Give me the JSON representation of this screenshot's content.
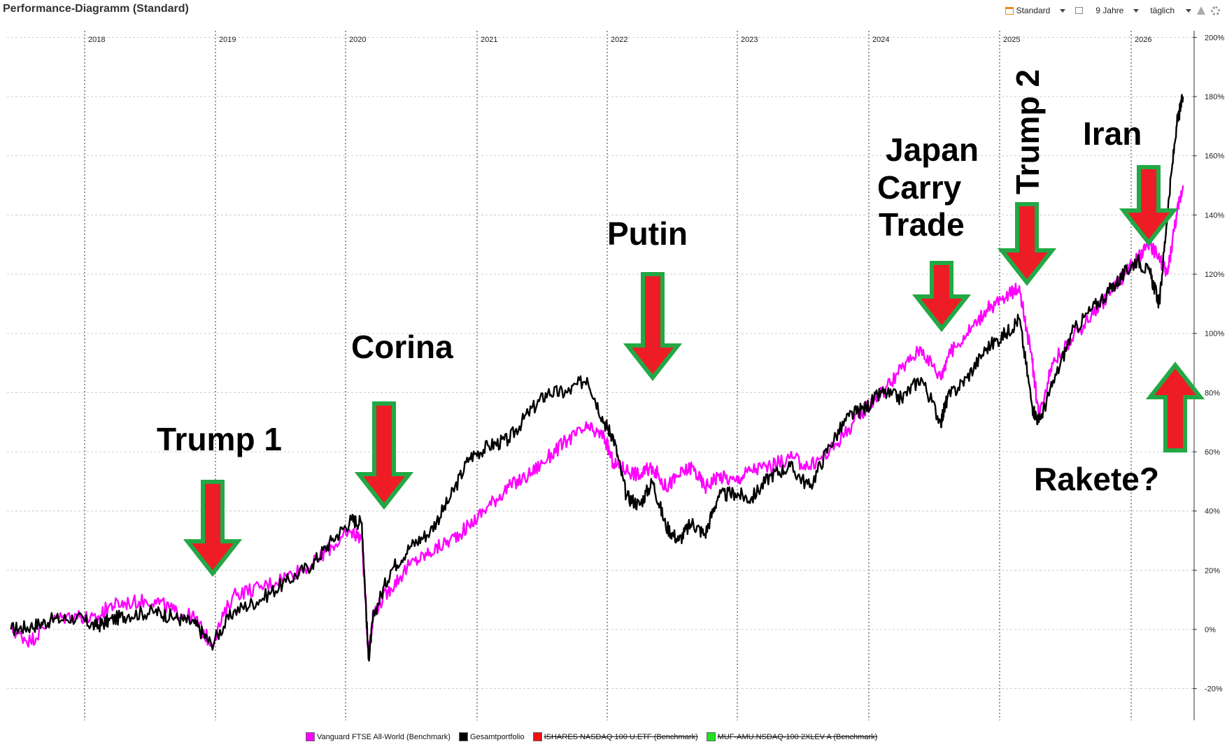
{
  "title": "Performance-Diagramm (Standard)",
  "toolbar": {
    "view_label": "Standard",
    "range_label": "9 Jahre",
    "interval_label": "täglich"
  },
  "annotations": {
    "trump1": "Trump 1",
    "corina": "Corina",
    "putin": "Putin",
    "japan1": "Japan",
    "japan2": "Carry",
    "japan3": "Trade",
    "trump2": "Trump 2",
    "iran": "Iran",
    "rakete": "Rakete?"
  },
  "legend": [
    {
      "label": "Vanguard FTSE All-World  (Benchmark)",
      "color": "#ff00ff",
      "strike": false
    },
    {
      "label": "Gesamtportfolio",
      "color": "#000000",
      "strike": false
    },
    {
      "label": "ISHARES NASDAQ  100 U.ETF (Benchmark)",
      "color": "#ee1111",
      "strike": true
    },
    {
      "label": "MUF-AMU.NSDAQ-100 2XLEV A (Benchmark)",
      "color": "#22dd22",
      "strike": true
    }
  ],
  "chart_data": {
    "type": "line",
    "x_label": "",
    "y_label": "",
    "x_ticks": [
      "2018",
      "2019",
      "2020",
      "2021",
      "2022",
      "2023",
      "2024",
      "2025",
      "2026"
    ],
    "y_ticks": [
      "200%",
      "180%",
      "160%",
      "140%",
      "120%",
      "100%",
      "80%",
      "60%",
      "40%",
      "20%",
      "0%",
      "-20%"
    ],
    "ylim": [
      -20,
      200
    ],
    "xlim": [
      2017.4,
      2026.5
    ],
    "grid": true,
    "series": [
      {
        "name": "Gesamtportfolio",
        "color": "#000000",
        "x": [
          2017.45,
          2017.6,
          2017.75,
          2017.95,
          2018.1,
          2018.2,
          2018.35,
          2018.55,
          2018.7,
          2018.85,
          2018.98,
          2019.15,
          2019.35,
          2019.55,
          2019.75,
          2019.9,
          2020.05,
          2020.13,
          2020.18,
          2020.22,
          2020.35,
          2020.5,
          2020.65,
          2020.8,
          2020.95,
          2021.1,
          2021.25,
          2021.4,
          2021.55,
          2021.7,
          2021.85,
          2021.98,
          2022.05,
          2022.15,
          2022.25,
          2022.35,
          2022.45,
          2022.55,
          2022.65,
          2022.75,
          2022.85,
          2022.98,
          2023.1,
          2023.25,
          2023.4,
          2023.55,
          2023.7,
          2023.85,
          2023.98,
          2024.1,
          2024.25,
          2024.4,
          2024.55,
          2024.6,
          2024.75,
          2024.9,
          2025.05,
          2025.15,
          2025.25,
          2025.3,
          2025.4,
          2025.55,
          2025.7,
          2025.85,
          2025.95,
          2026.05,
          2026.15,
          2026.22,
          2026.28,
          2026.35,
          2026.4
        ],
        "values": [
          0,
          1,
          3,
          4,
          1,
          3,
          5,
          6,
          4,
          2,
          -5,
          6,
          10,
          16,
          22,
          30,
          37,
          36,
          -10,
          5,
          20,
          28,
          33,
          44,
          58,
          62,
          64,
          73,
          80,
          80,
          85,
          70,
          65,
          45,
          42,
          50,
          35,
          30,
          36,
          32,
          45,
          46,
          44,
          52,
          55,
          48,
          62,
          72,
          75,
          80,
          78,
          85,
          70,
          78,
          85,
          95,
          100,
          105,
          75,
          70,
          82,
          100,
          108,
          115,
          120,
          125,
          120,
          110,
          140,
          170,
          180
        ]
      },
      {
        "name": "Vanguard FTSE All-World  (Benchmark)",
        "color": "#ff00ff",
        "x": [
          2017.45,
          2017.6,
          2017.75,
          2017.95,
          2018.1,
          2018.2,
          2018.35,
          2018.55,
          2018.7,
          2018.85,
          2018.98,
          2019.15,
          2019.35,
          2019.55,
          2019.75,
          2019.9,
          2020.05,
          2020.13,
          2020.18,
          2020.22,
          2020.35,
          2020.5,
          2020.65,
          2020.8,
          2020.95,
          2021.1,
          2021.25,
          2021.4,
          2021.55,
          2021.7,
          2021.85,
          2021.98,
          2022.05,
          2022.15,
          2022.25,
          2022.35,
          2022.45,
          2022.55,
          2022.65,
          2022.75,
          2022.85,
          2022.98,
          2023.1,
          2023.25,
          2023.4,
          2023.55,
          2023.7,
          2023.85,
          2023.98,
          2024.1,
          2024.25,
          2024.4,
          2024.55,
          2024.6,
          2024.75,
          2024.9,
          2025.05,
          2025.15,
          2025.25,
          2025.3,
          2025.4,
          2025.55,
          2025.7,
          2025.85,
          2025.95,
          2026.05,
          2026.15,
          2026.22,
          2026.28,
          2026.35,
          2026.4
        ],
        "values": [
          0,
          -4,
          3,
          5,
          3,
          8,
          9,
          10,
          6,
          4,
          -5,
          12,
          14,
          18,
          22,
          28,
          33,
          31,
          -8,
          6,
          14,
          22,
          26,
          30,
          35,
          42,
          48,
          52,
          58,
          64,
          68,
          65,
          56,
          54,
          52,
          55,
          48,
          52,
          55,
          48,
          52,
          50,
          54,
          55,
          58,
          55,
          60,
          68,
          75,
          80,
          88,
          95,
          85,
          92,
          100,
          108,
          112,
          116,
          90,
          72,
          90,
          98,
          106,
          114,
          120,
          125,
          130,
          125,
          120,
          140,
          150
        ]
      }
    ]
  }
}
